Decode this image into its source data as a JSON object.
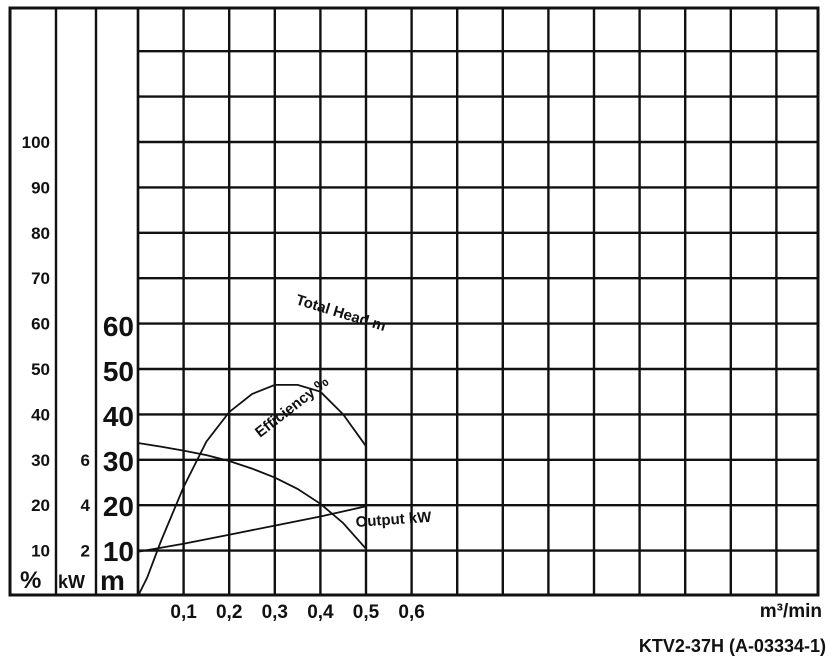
{
  "chart_data": {
    "type": "line",
    "title": "KTV2-37H (A-03334-1)",
    "x_unit": "m³/min",
    "x_ticks": [
      "0,1",
      "0,2",
      "0,3",
      "0,4",
      "0,5",
      "0,6"
    ],
    "xlim": [
      0,
      0.75
    ],
    "axes": {
      "head": {
        "unit": "m",
        "ticks": [
          "10",
          "20",
          "30",
          "40",
          "50",
          "60"
        ],
        "ylim": [
          0,
          65
        ]
      },
      "efficiency": {
        "unit": "%",
        "ticks": [
          "10",
          "20",
          "30",
          "40",
          "50",
          "60",
          "70",
          "80",
          "90",
          "100"
        ],
        "ylim": [
          0,
          100
        ]
      },
      "output": {
        "unit": "kW",
        "ticks": [
          "2",
          "4",
          "6"
        ],
        "ylim": [
          0,
          6
        ]
      }
    },
    "grid": true,
    "series": [
      {
        "name": "Total Head m",
        "axis": "head",
        "x": [
          0,
          0.05,
          0.1,
          0.15,
          0.2,
          0.25,
          0.3,
          0.35,
          0.4,
          0.45,
          0.5
        ],
        "values": [
          34,
          33.2,
          32.3,
          31.3,
          30,
          28.3,
          26.3,
          23.8,
          20.5,
          16.2,
          10.5
        ]
      },
      {
        "name": "Efficiency %",
        "axis": "efficiency",
        "x": [
          0,
          0.02,
          0.05,
          0.1,
          0.15,
          0.2,
          0.25,
          0.3,
          0.35,
          0.4,
          0.45,
          0.5
        ],
        "values": [
          0,
          4,
          12,
          24,
          34,
          40.5,
          44.5,
          46.5,
          46.5,
          45,
          40,
          33
        ]
      },
      {
        "name": "Output kW",
        "axis": "output",
        "x": [
          0,
          0.1,
          0.2,
          0.3,
          0.4,
          0.5
        ],
        "values": [
          1.95,
          2.3,
          2.7,
          3.1,
          3.5,
          3.95
        ]
      }
    ]
  }
}
